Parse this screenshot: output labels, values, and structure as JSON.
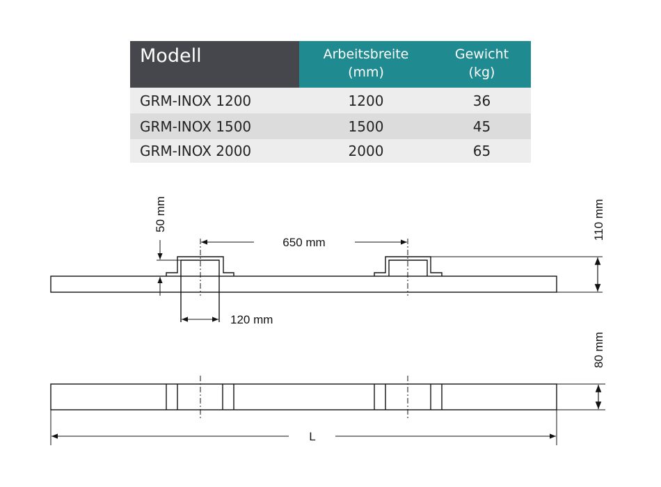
{
  "table": {
    "headers": [
      "Modell",
      "Arbeitsbreite\n(mm)",
      "Gewicht\n(kg)"
    ],
    "header_lines": {
      "breite": [
        "Arbeitsbreite",
        "(mm)"
      ],
      "gewicht": [
        "Gewicht",
        "(kg)"
      ]
    },
    "rows": [
      {
        "model": "GRM-INOX 1200",
        "width": "1200",
        "weight": "36"
      },
      {
        "model": "GRM-INOX 1500",
        "width": "1500",
        "weight": "45"
      },
      {
        "model": "GRM-INOX 2000",
        "width": "2000",
        "weight": "65"
      }
    ],
    "colors": {
      "model_header": "#45474d",
      "header": "#1f8a8f",
      "row_light": "#ededed",
      "row_dark": "#dcdcdc"
    }
  },
  "drawing": {
    "dim_50": "50 mm",
    "dim_650": "650 mm",
    "dim_120": "120 mm",
    "dim_110": "110 mm",
    "dim_80": "80 mm",
    "dim_L": "L"
  }
}
